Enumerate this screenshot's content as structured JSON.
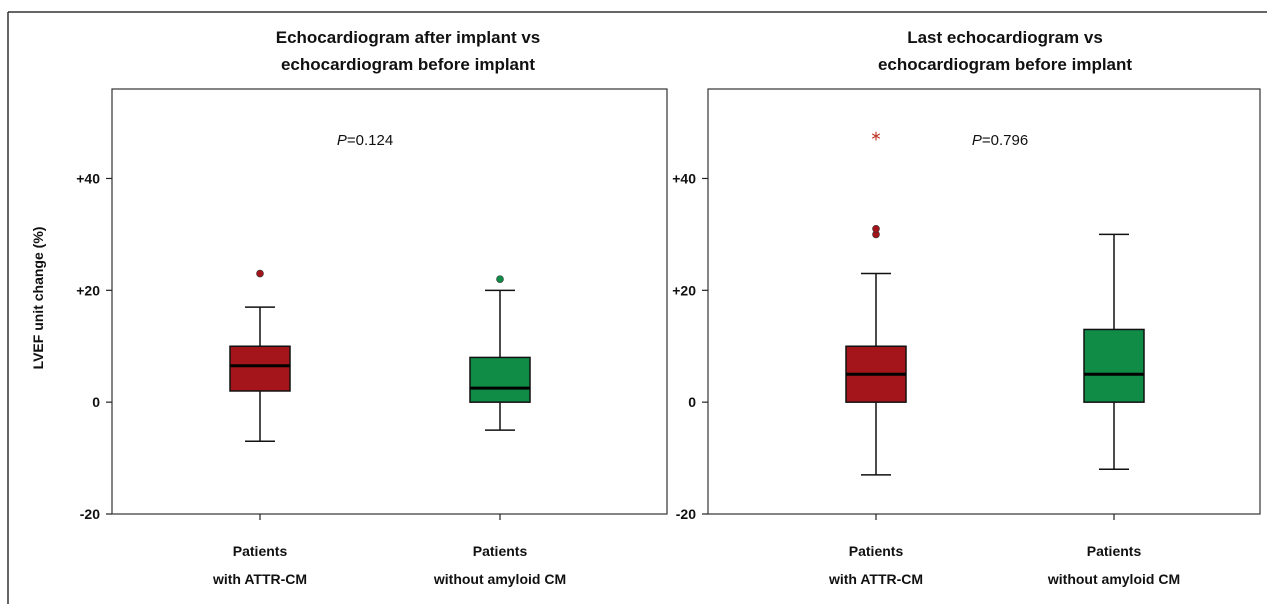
{
  "colors": {
    "attr": "#a3151b",
    "non_amyloid": "#118c47",
    "outlier_star": "#c0392b",
    "frame": "#333333"
  },
  "ylabel": "LVEF unit change (%)",
  "chart_data": [
    {
      "type": "box",
      "title_lines": [
        "Echocardiogram after implant vs",
        "echocardiogram before implant"
      ],
      "p_prefix": "P",
      "p_value": "=0.124",
      "ylim": [
        -20,
        56
      ],
      "yticks": [
        -20,
        0,
        20,
        40
      ],
      "ytick_labels": [
        "-20",
        "0",
        "+20",
        "+40"
      ],
      "groups": [
        {
          "label_lines": [
            "Patients",
            "with ATTR-CM"
          ],
          "color_key": "attr",
          "whisker_low": -7,
          "q1": 2,
          "median": 6.5,
          "q3": 10,
          "whisker_high": 17,
          "outliers": [
            23
          ],
          "extremes": []
        },
        {
          "label_lines": [
            "Patients",
            "without amyloid CM"
          ],
          "color_key": "non_amyloid",
          "whisker_low": -5,
          "q1": 0,
          "median": 2.5,
          "q3": 8,
          "whisker_high": 20,
          "outliers": [
            22
          ],
          "extremes": []
        }
      ]
    },
    {
      "type": "box",
      "title_lines": [
        "Last echocardiogram vs",
        "echocardiogram before implant"
      ],
      "p_prefix": "P",
      "p_value": "=0.796",
      "ylim": [
        -20,
        56
      ],
      "yticks": [
        -20,
        0,
        20,
        40
      ],
      "ytick_labels": [
        "-20",
        "0",
        "+20",
        "+40"
      ],
      "groups": [
        {
          "label_lines": [
            "Patients",
            "with ATTR-CM"
          ],
          "color_key": "attr",
          "whisker_low": -13,
          "q1": 0,
          "median": 5,
          "q3": 10,
          "whisker_high": 23,
          "outliers": [
            30,
            31
          ],
          "extremes": [
            48
          ]
        },
        {
          "label_lines": [
            "Patients",
            "without amyloid CM"
          ],
          "color_key": "non_amyloid",
          "whisker_low": -12,
          "q1": 0,
          "median": 5,
          "q3": 13,
          "whisker_high": 30,
          "outliers": [],
          "extremes": []
        }
      ]
    }
  ]
}
